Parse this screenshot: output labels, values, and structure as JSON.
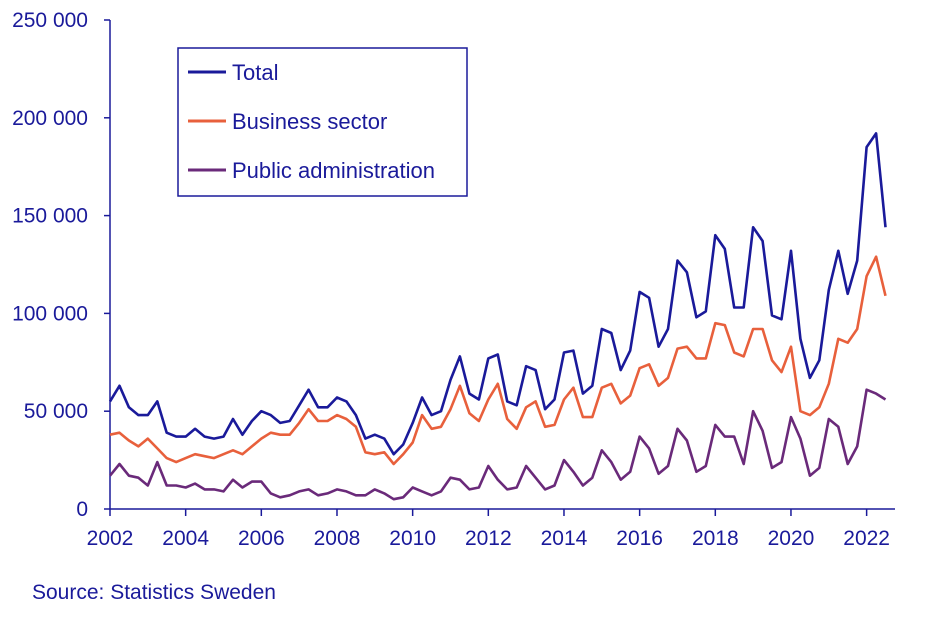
{
  "chart_data": {
    "type": "line",
    "title": "",
    "xlabel": "",
    "ylabel": "",
    "ylim": [
      0,
      250000
    ],
    "xlim": [
      2002,
      2022.75
    ],
    "y_ticks": [
      0,
      50000,
      100000,
      150000,
      200000,
      250000
    ],
    "y_tick_labels": [
      "0",
      "50 000",
      "100 000",
      "150 000",
      "200 000",
      "250 000"
    ],
    "x_ticks": [
      2002,
      2004,
      2006,
      2008,
      2010,
      2012,
      2014,
      2016,
      2018,
      2020,
      2022
    ],
    "x_tick_labels": [
      "2002",
      "2004",
      "2006",
      "2008",
      "2010",
      "2012",
      "2014",
      "2016",
      "2018",
      "2020",
      "2022"
    ],
    "x_start": 2002.0,
    "x_step": 0.25,
    "legend_position": "top-left",
    "grid": false,
    "series": [
      {
        "name": "Total",
        "color": "#1a1a9a",
        "values": [
          55000,
          63000,
          52000,
          48000,
          48000,
          55000,
          39000,
          37000,
          37000,
          41000,
          37000,
          36000,
          37000,
          46000,
          38000,
          45000,
          50000,
          48000,
          44000,
          45000,
          53000,
          61000,
          52000,
          52000,
          57000,
          55000,
          48000,
          36000,
          38000,
          36000,
          28000,
          33000,
          44000,
          57000,
          48000,
          50000,
          66000,
          78000,
          59000,
          56000,
          77000,
          79000,
          55000,
          53000,
          73000,
          71000,
          51000,
          56000,
          80000,
          81000,
          59000,
          63000,
          92000,
          90000,
          71000,
          81000,
          111000,
          108000,
          83000,
          92000,
          127000,
          121000,
          98000,
          101000,
          140000,
          133000,
          103000,
          103000,
          144000,
          137000,
          99000,
          97000,
          132000,
          87000,
          67000,
          76000,
          112000,
          132000,
          110000,
          127000,
          185000,
          192000,
          144000
        ]
      },
      {
        "name": "Business sector",
        "color": "#e8603c",
        "values": [
          38000,
          39000,
          35000,
          32000,
          36000,
          31000,
          26000,
          24000,
          26000,
          28000,
          27000,
          26000,
          28000,
          30000,
          28000,
          32000,
          36000,
          39000,
          38000,
          38000,
          44000,
          51000,
          45000,
          45000,
          48000,
          46000,
          42000,
          29000,
          28000,
          29000,
          23000,
          28000,
          34000,
          48000,
          41000,
          42000,
          51000,
          63000,
          49000,
          45000,
          56000,
          64000,
          46000,
          41000,
          52000,
          55000,
          42000,
          43000,
          56000,
          62000,
          47000,
          47000,
          62000,
          64000,
          54000,
          58000,
          72000,
          74000,
          63000,
          67000,
          82000,
          83000,
          77000,
          77000,
          95000,
          94000,
          80000,
          78000,
          92000,
          92000,
          76000,
          70000,
          83000,
          50000,
          48000,
          52000,
          64000,
          87000,
          85000,
          92000,
          119000,
          129000,
          109000
        ]
      },
      {
        "name": "Public administration",
        "color": "#6a2a7a",
        "values": [
          17000,
          23000,
          17000,
          16000,
          12000,
          24000,
          12000,
          12000,
          11000,
          13000,
          10000,
          10000,
          9000,
          15000,
          11000,
          14000,
          14000,
          8000,
          6000,
          7000,
          9000,
          10000,
          7000,
          8000,
          10000,
          9000,
          7000,
          7000,
          10000,
          8000,
          5000,
          6000,
          11000,
          9000,
          7000,
          9000,
          16000,
          15000,
          10000,
          11000,
          22000,
          15000,
          10000,
          11000,
          22000,
          16000,
          10000,
          12000,
          25000,
          19000,
          12000,
          16000,
          30000,
          24000,
          15000,
          19000,
          37000,
          31000,
          18000,
          22000,
          41000,
          35000,
          19000,
          22000,
          43000,
          37000,
          37000,
          23000,
          50000,
          40000,
          21000,
          24000,
          47000,
          36000,
          17000,
          21000,
          46000,
          42000,
          23000,
          32000,
          61000,
          59000,
          56000
        ]
      }
    ]
  },
  "source": "Source: Statistics Sweden"
}
